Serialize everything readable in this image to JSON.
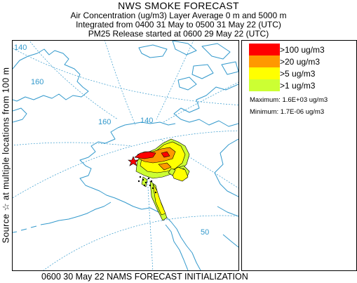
{
  "header": {
    "title": "NWS SMOKE FORECAST",
    "line2": "Air Concentration (ug/m3) Layer Average    0 m and  5000 m",
    "line3": "Integrated from 0400 31 May to 0500 31 May 22 (UTC)",
    "line4": "PM25 Release started at 0600 29 May 22 (UTC)"
  },
  "side_label": "Source ☆  at multiple locations    from  100 m",
  "footer": "0600 30 May 22 NAMS FORECAST INITIALIZATION",
  "legend": {
    "items": [
      {
        "label": ">100 ug/m3",
        "color": "#ff0000"
      },
      {
        "label": ">20 ug/m3",
        "color": "#ff9900"
      },
      {
        "label": ">5 ug/m3",
        "color": "#ffff00"
      },
      {
        "label": ">1 ug/m3",
        "color": "#ccff33"
      }
    ],
    "maximum": "Maximum: 1.6E+03 ug/m3",
    "minimum": "Minimum: 1.7E-06 ug/m3"
  },
  "map": {
    "grid_labels": [
      "140",
      "160",
      "160",
      "140",
      "50"
    ],
    "colors": {
      "coast": "#3399cc",
      "grid": "#3399cc",
      "plume_outline": "#000000"
    }
  }
}
